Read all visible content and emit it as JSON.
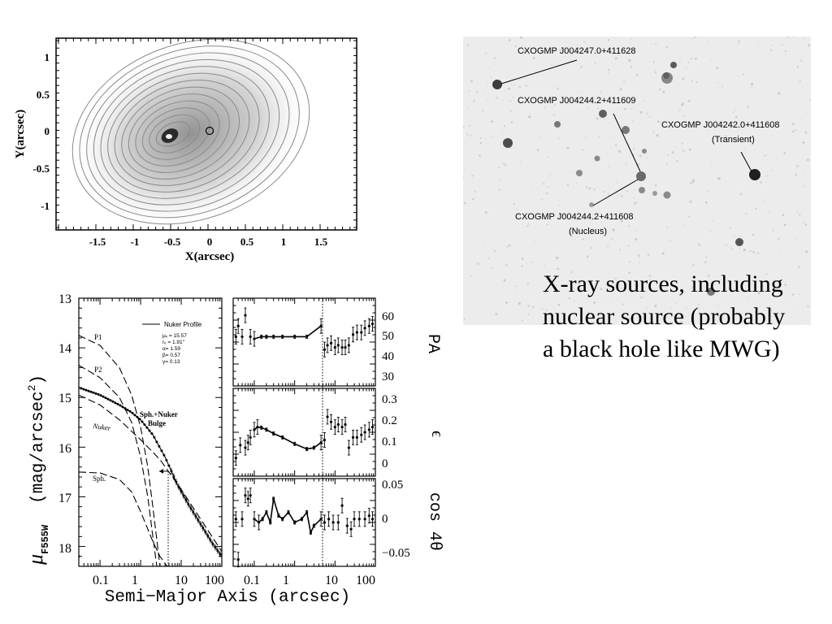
{
  "contour_plot": {
    "xlabel": "X(arcsec)",
    "ylabel": "Y(arcsec)",
    "xticks": [
      "-1.5",
      "-1",
      "-0.5",
      "0",
      "0.5",
      "1",
      "1.5"
    ],
    "yticks": [
      "1",
      "0.5",
      "0",
      "-0.5",
      "-1"
    ]
  },
  "xray_image": {
    "sources": [
      {
        "id": "src1",
        "label": "CXOGMP J004247.0+411628"
      },
      {
        "id": "src2",
        "label": "CXOGMP J004244.2+411609"
      },
      {
        "id": "src3",
        "label": "CXOGMP J004242.0+411608",
        "sublabel": "(Transient)"
      },
      {
        "id": "src4",
        "label": "CXOGMP J004244.2+411608",
        "sublabel": "(Nucleus)"
      }
    ]
  },
  "caption": "X-ray sources, including nuclear source (probably a black hole like MWG)",
  "profile_plot": {
    "xlabel": "Semi−Major Axis (arcsec)",
    "ylabel_mu": "μ",
    "ylabel_sub": "F555W",
    "ylabel_units": "(mag/arcsec",
    "ylabel_pow": "2",
    "ylabel_close": ")",
    "xticks_main": [
      "0.1",
      "1",
      "10",
      "100"
    ],
    "yticks_main": [
      "13",
      "14",
      "15",
      "16",
      "17",
      "18"
    ],
    "legend_title": "Nuker Profile",
    "params": [
      "μₑ = 15.57",
      "rₑ = 1.91″",
      "α= 1.59",
      "β= 0.57",
      "γ= 0.13"
    ],
    "curve_labels": {
      "p1": "P1",
      "p2": "P2",
      "nuker": "Nuker",
      "sph": "Sph.",
      "bulge1": "Sph.+Nuker",
      "bulge2": "Bulge"
    },
    "pa_label": "PA",
    "pa_ticks": [
      "60",
      "50",
      "40",
      "30"
    ],
    "eps_label": "ϵ",
    "eps_ticks": [
      "0.3",
      "0.2",
      "0.1",
      "0"
    ],
    "cos_label": "cos 4θ",
    "cos_ticks": [
      "0.05",
      "0",
      "−0.05"
    ],
    "xticks_side": [
      "0.1",
      "1",
      "10",
      "100"
    ]
  },
  "chart_data": [
    {
      "type": "line",
      "xlabel": "Semi−Major Axis (arcsec)",
      "ylabel": "μ F555W (mag/arcsec^2)",
      "xscale": "log",
      "xlim": [
        0.03,
        100
      ],
      "ylim": [
        18.4,
        13
      ],
      "legend": "top-right",
      "series": [
        {
          "name": "Sph.+Nuker Bulge",
          "x": [
            0.03,
            0.1,
            0.3,
            0.6,
            1,
            2,
            4,
            8,
            15,
            30,
            60,
            100
          ],
          "y": [
            14.8,
            14.95,
            15.15,
            15.3,
            15.45,
            15.75,
            16.2,
            16.75,
            17.15,
            17.55,
            17.95,
            18.2
          ]
        },
        {
          "name": "P1",
          "x": [
            0.03,
            0.1,
            0.3,
            0.6,
            1,
            1.5,
            2,
            3
          ],
          "y": [
            13.75,
            13.95,
            14.4,
            14.95,
            15.6,
            16.4,
            17.2,
            18.4
          ]
        },
        {
          "name": "P2",
          "x": [
            0.03,
            0.1,
            0.3,
            0.6,
            1,
            1.5,
            2,
            2.5
          ],
          "y": [
            14.35,
            14.6,
            15.0,
            15.5,
            16.2,
            17.0,
            17.8,
            18.4
          ]
        },
        {
          "name": "Nuker",
          "x": [
            0.03,
            0.1,
            0.3,
            1,
            3,
            10,
            30,
            100
          ],
          "y": [
            14.95,
            15.15,
            15.45,
            15.85,
            16.25,
            16.85,
            17.45,
            18.1
          ]
        },
        {
          "name": "Sph.",
          "x": [
            0.03,
            0.1,
            0.3,
            0.6,
            1,
            2,
            3,
            4.5
          ],
          "y": [
            16.5,
            16.52,
            16.65,
            16.9,
            17.3,
            17.9,
            18.2,
            18.4
          ]
        }
      ]
    },
    {
      "type": "scatter",
      "ylabel": "PA",
      "xscale": "log",
      "xlim": [
        0.03,
        100
      ],
      "ylim": [
        27,
        68
      ],
      "series": [
        {
          "name": "PA",
          "x": [
            0.035,
            0.04,
            0.05,
            0.06,
            0.08,
            0.1,
            0.15,
            0.2,
            0.3,
            0.5,
            1,
            2,
            4.5,
            5.5,
            6.5,
            8,
            10,
            12,
            15,
            18,
            22,
            28,
            35,
            45,
            55,
            70,
            85
          ],
          "y": [
            50,
            55,
            50,
            60,
            50,
            49,
            50,
            50,
            50,
            50,
            50,
            50,
            55,
            44,
            46,
            47,
            45,
            46,
            45,
            45,
            46,
            51,
            52,
            52,
            54,
            55,
            56
          ]
        }
      ]
    },
    {
      "type": "scatter",
      "ylabel": "ϵ",
      "xscale": "log",
      "xlim": [
        0.03,
        100
      ],
      "ylim": [
        -0.02,
        0.32
      ],
      "series": [
        {
          "name": "ϵ",
          "x": [
            0.035,
            0.045,
            0.06,
            0.07,
            0.08,
            0.1,
            0.12,
            0.15,
            0.2,
            0.3,
            0.5,
            1,
            2,
            3,
            4.5,
            5.5,
            6.5,
            8,
            10,
            12,
            15,
            18,
            22,
            28,
            35,
            45,
            55,
            70,
            85
          ],
          "y": [
            0.05,
            0.1,
            0.09,
            0.11,
            0.13,
            0.16,
            0.17,
            0.168,
            0.16,
            0.145,
            0.13,
            0.105,
            0.085,
            0.09,
            0.11,
            0.12,
            0.21,
            0.19,
            0.17,
            0.18,
            0.17,
            0.18,
            0.09,
            0.13,
            0.13,
            0.14,
            0.15,
            0.16,
            0.17
          ]
        }
      ]
    },
    {
      "type": "scatter",
      "ylabel": "cos 4θ",
      "xscale": "log",
      "xlim": [
        0.03,
        100
      ],
      "ylim": [
        -0.07,
        0.06
      ],
      "series": [
        {
          "name": "cos 4θ",
          "x": [
            0.035,
            0.04,
            0.05,
            0.06,
            0.07,
            0.08,
            0.1,
            0.13,
            0.16,
            0.2,
            0.25,
            0.3,
            0.4,
            0.5,
            0.7,
            1,
            1.5,
            2,
            2.5,
            3,
            4.5,
            5.5,
            7,
            9,
            12,
            15,
            20,
            25,
            30,
            40,
            55,
            70,
            85
          ],
          "y": [
            0.0,
            -0.06,
            0.0,
            0.035,
            0.03,
            0.035,
            0.0,
            -0.005,
            0.0,
            0.01,
            -0.005,
            0.03,
            0.005,
            0.0,
            0.01,
            -0.005,
            0.0,
            0.01,
            -0.02,
            -0.01,
            0.0,
            -0.005,
            0.0,
            -0.005,
            -0.005,
            0.02,
            -0.01,
            -0.015,
            0.0,
            0.0,
            0.0,
            0.005,
            0.0
          ]
        }
      ]
    }
  ]
}
